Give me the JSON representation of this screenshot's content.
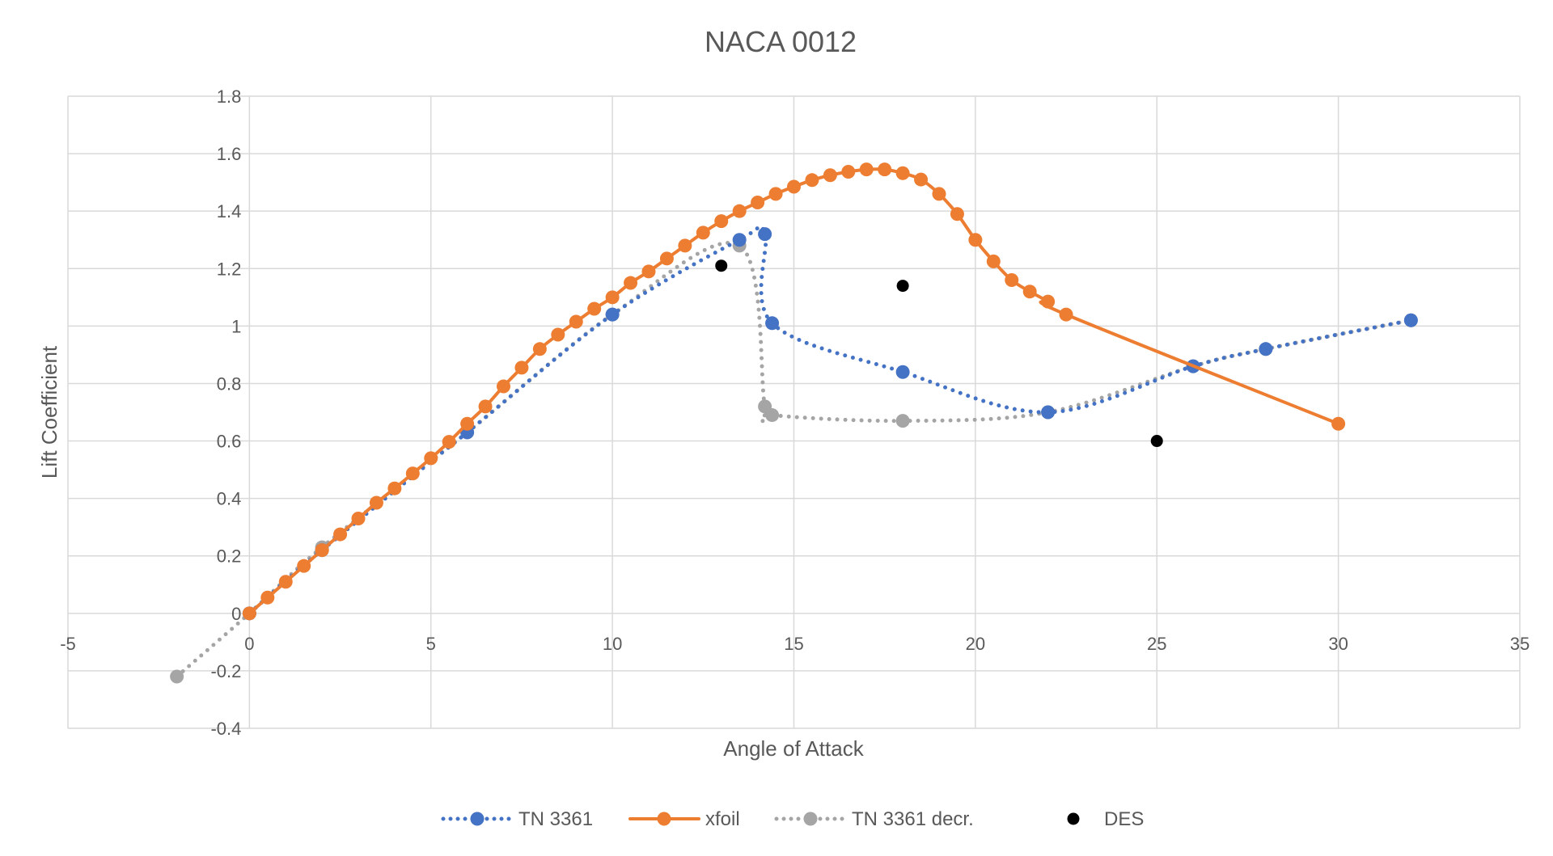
{
  "chart_data": {
    "type": "scatter",
    "title": "NACA 0012",
    "xlabel": "Angle of Attack",
    "ylabel": "Lift Coefficient",
    "xlim": [
      -5,
      35
    ],
    "ylim": [
      -0.4,
      1.8
    ],
    "xticks": [
      -5,
      0,
      5,
      10,
      15,
      20,
      25,
      30,
      35
    ],
    "yticks": [
      -0.4,
      -0.2,
      0,
      0.2,
      0.4,
      0.6,
      0.8,
      1,
      1.2,
      1.4,
      1.6,
      1.8
    ],
    "grid": true,
    "legend_position": "bottom",
    "series": [
      {
        "name": "TN 3361",
        "color": "#4472C4",
        "line": "dotted",
        "smooth": true,
        "x": [
          0,
          2,
          6,
          10,
          13.5,
          14.2,
          14.4,
          18,
          22,
          26,
          28,
          32
        ],
        "y": [
          0,
          0.22,
          0.63,
          1.04,
          1.3,
          1.32,
          1.01,
          0.84,
          0.7,
          0.86,
          0.92,
          1.02
        ]
      },
      {
        "name": "xfoil",
        "color": "#ED7D31",
        "line": "solid",
        "smooth": true,
        "x": [
          0,
          0.5,
          1,
          1.5,
          2,
          2.5,
          3,
          3.5,
          4,
          4.5,
          5,
          5.5,
          6,
          6.5,
          7,
          7.5,
          8,
          8.5,
          9,
          9.5,
          10,
          10.5,
          11,
          11.5,
          12,
          12.5,
          13,
          13.5,
          14,
          14.5,
          15,
          15.5,
          16,
          16.5,
          17,
          17.5,
          18,
          18.5,
          19,
          19.5,
          20,
          20.5,
          21,
          21.5,
          22,
          22.5,
          30
        ],
        "y": [
          0,
          0.055,
          0.11,
          0.165,
          0.22,
          0.275,
          0.33,
          0.385,
          0.435,
          0.487,
          0.54,
          0.597,
          0.66,
          0.72,
          0.79,
          0.855,
          0.92,
          0.97,
          1.015,
          1.06,
          1.1,
          1.15,
          1.19,
          1.235,
          1.28,
          1.325,
          1.365,
          1.4,
          1.43,
          1.46,
          1.485,
          1.508,
          1.525,
          1.537,
          1.545,
          1.545,
          1.532,
          1.51,
          1.46,
          1.39,
          1.3,
          1.225,
          1.16,
          1.12,
          1.085,
          1.04,
          0.66
        ]
      },
      {
        "name": "TN 3361 decr.",
        "color": "#A5A5A5",
        "line": "dotted",
        "smooth": true,
        "x": [
          -2,
          0,
          2,
          6,
          10,
          13.5,
          14.2,
          14.4,
          18,
          22,
          26,
          28,
          32
        ],
        "y": [
          -0.22,
          0,
          0.23,
          0.63,
          1.04,
          1.28,
          0.72,
          0.69,
          0.67,
          0.7,
          0.86,
          0.92,
          1.02
        ]
      },
      {
        "name": "DES",
        "color": "#000000",
        "line": "none",
        "smooth": false,
        "x": [
          13,
          18,
          25
        ],
        "y": [
          1.21,
          1.14,
          0.6
        ]
      }
    ]
  }
}
